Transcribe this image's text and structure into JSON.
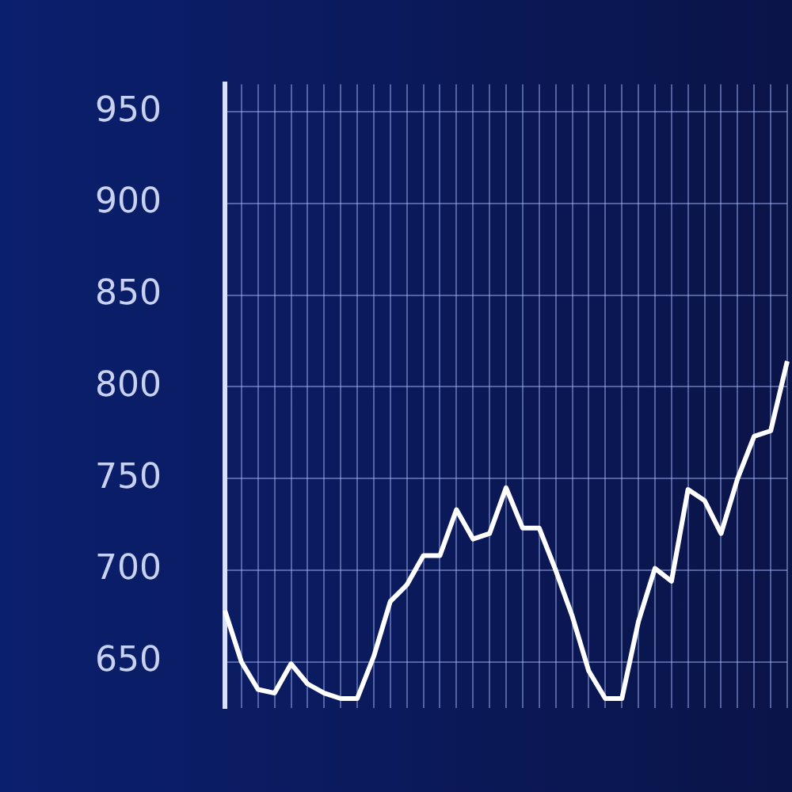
{
  "chart_data": {
    "type": "line",
    "categories": [
      null,
      null,
      null,
      null,
      null,
      null,
      null,
      null,
      null,
      null,
      null,
      null,
      null,
      null,
      null,
      null,
      null,
      null,
      null,
      null,
      null,
      null,
      null,
      null,
      null,
      null,
      null,
      null,
      null,
      null,
      null,
      null,
      null,
      null,
      null
    ],
    "series": [
      {
        "color": "#ffffff",
        "values": [
          678,
          650,
          635,
          633,
          649,
          638,
          633,
          630,
          630,
          653,
          683,
          692,
          708,
          708,
          733,
          717,
          720,
          745,
          723,
          723,
          700,
          675,
          645,
          630,
          630,
          672,
          701,
          694,
          744,
          738,
          720,
          750,
          773,
          776,
          814
        ]
      }
    ],
    "ylim": [
      625,
      965
    ],
    "yticks": [
      650,
      700,
      750,
      800,
      850,
      900,
      950
    ],
    "grid": true,
    "legend": false,
    "marker": "none",
    "line_style": "solid"
  }
}
